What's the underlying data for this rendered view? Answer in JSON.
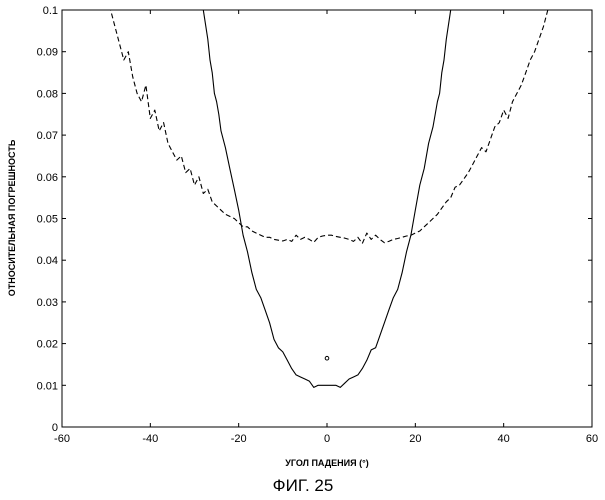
{
  "figure_caption": "ФИГ. 25",
  "chart_data": {
    "type": "line",
    "title": "",
    "xlabel": "УГОЛ ПАДЕНИЯ (°)",
    "ylabel": "ОТНОСИТЕЛЬНАЯ ПОГРЕШНОСТЬ",
    "xlim": [
      -60,
      60
    ],
    "ylim": [
      0,
      0.1
    ],
    "xticks": [
      "-60",
      "-40",
      "-20",
      "0",
      "20",
      "40",
      "60"
    ],
    "yticks": [
      "0",
      "0.01",
      "0.02",
      "0.03",
      "0.04",
      "0.05",
      "0.06",
      "0.07",
      "0.08",
      "0.09",
      "0.1"
    ],
    "grid": false,
    "legend": "none",
    "series": [
      {
        "style": "solid",
        "x": [
          -28,
          -27,
          -26.5,
          -26,
          -25.5,
          -25,
          -24.5,
          -24,
          -23,
          -22,
          -21,
          -20,
          -19,
          -18,
          -17,
          -16,
          -15,
          -14,
          -13,
          -12,
          -11,
          -10,
          -9,
          -8,
          -7,
          -6,
          -5,
          -4,
          -3,
          -2,
          -1,
          0,
          1,
          2,
          3,
          4,
          5,
          6,
          7,
          8,
          9,
          10,
          11,
          12,
          13,
          14,
          15,
          16,
          17,
          18,
          19,
          20,
          21,
          22,
          23,
          24,
          24.5,
          25,
          25.5,
          26,
          26.5,
          27,
          28
        ],
        "y": [
          0.1,
          0.093,
          0.088,
          0.085,
          0.08,
          0.078,
          0.075,
          0.071,
          0.067,
          0.062,
          0.057,
          0.052,
          0.046,
          0.042,
          0.037,
          0.033,
          0.031,
          0.028,
          0.025,
          0.021,
          0.019,
          0.018,
          0.016,
          0.014,
          0.0125,
          0.012,
          0.0115,
          0.011,
          0.0095,
          0.01,
          0.01,
          0.01,
          0.01,
          0.01,
          0.0095,
          0.0105,
          0.0115,
          0.012,
          0.0125,
          0.014,
          0.016,
          0.0185,
          0.019,
          0.022,
          0.025,
          0.028,
          0.031,
          0.033,
          0.037,
          0.042,
          0.046,
          0.052,
          0.058,
          0.062,
          0.068,
          0.072,
          0.075,
          0.078,
          0.08,
          0.085,
          0.088,
          0.093,
          0.1
        ]
      },
      {
        "style": "dashed",
        "x": [
          -50,
          -49,
          -48,
          -47,
          -46,
          -45,
          -44,
          -43,
          -42,
          -41,
          -40,
          -39,
          -38,
          -37,
          -36,
          -35,
          -34,
          -33,
          -32,
          -31,
          -30,
          -29,
          -28,
          -27,
          -26,
          -25,
          -24,
          -23,
          -22,
          -21,
          -20,
          -19,
          -18,
          -17,
          -16,
          -15,
          -14,
          -13,
          -12,
          -11,
          -10,
          -9,
          -8,
          -7,
          -6,
          -5,
          -4,
          -3,
          -2,
          -1,
          0,
          1,
          2,
          3,
          4,
          5,
          6,
          7,
          8,
          9,
          10,
          11,
          12,
          13,
          14,
          15,
          16,
          17,
          18,
          19,
          20,
          21,
          22,
          23,
          24,
          25,
          26,
          27,
          28,
          29,
          30,
          31,
          32,
          33,
          34,
          35,
          36,
          37,
          38,
          39,
          40,
          41,
          42,
          43,
          44,
          45,
          46,
          47,
          48,
          49,
          50
        ],
        "y": [
          0.1,
          0.1,
          0.096,
          0.092,
          0.088,
          0.09,
          0.084,
          0.08,
          0.078,
          0.082,
          0.074,
          0.076,
          0.071,
          0.073,
          0.068,
          0.066,
          0.064,
          0.065,
          0.061,
          0.062,
          0.058,
          0.06,
          0.056,
          0.057,
          0.054,
          0.053,
          0.052,
          0.051,
          0.0505,
          0.05,
          0.049,
          0.048,
          0.048,
          0.047,
          0.0465,
          0.046,
          0.0455,
          0.0455,
          0.045,
          0.0448,
          0.0446,
          0.045,
          0.0445,
          0.046,
          0.045,
          0.0455,
          0.045,
          0.0443,
          0.0455,
          0.0458,
          0.046,
          0.046,
          0.0457,
          0.0455,
          0.0453,
          0.045,
          0.0445,
          0.0455,
          0.044,
          0.0465,
          0.045,
          0.046,
          0.045,
          0.0442,
          0.0445,
          0.045,
          0.0452,
          0.0455,
          0.0458,
          0.046,
          0.0465,
          0.047,
          0.048,
          0.049,
          0.05,
          0.051,
          0.0525,
          0.054,
          0.055,
          0.0575,
          0.058,
          0.0595,
          0.061,
          0.063,
          0.065,
          0.067,
          0.066,
          0.069,
          0.072,
          0.073,
          0.076,
          0.074,
          0.078,
          0.08,
          0.082,
          0.085,
          0.088,
          0.09,
          0.093,
          0.096,
          0.1
        ]
      }
    ],
    "annotations": [
      {
        "type": "small-circle-marker",
        "x": 0,
        "y": 0.0165
      }
    ]
  }
}
